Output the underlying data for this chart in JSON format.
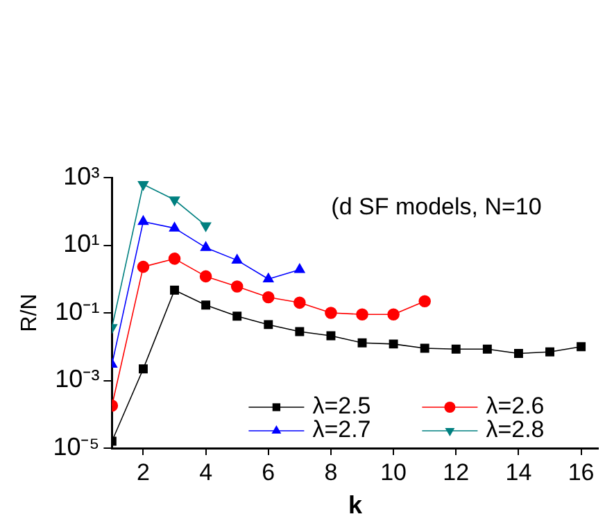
{
  "chart_data": {
    "type": "line",
    "xlabel": "k",
    "ylabel": "R/N",
    "annotations": [
      "(d SF models, N=10"
    ],
    "log": "y",
    "xlim": [
      1,
      16.55
    ],
    "xticks": [
      2,
      4,
      6,
      8,
      10,
      12,
      14,
      16
    ],
    "ylim": [
      1e-05,
      1000
    ],
    "yticks": [
      {
        "value": 1e-05,
        "label": "10⁻⁵"
      },
      {
        "value": 0.001,
        "label": "10⁻³"
      },
      {
        "value": 0.1,
        "label": "10⁻¹"
      },
      {
        "value": 10,
        "label": "10¹"
      },
      {
        "value": 1000,
        "label": "10³"
      }
    ],
    "grid": false,
    "legend": "bottom right",
    "line_style": "solid",
    "series": [
      {
        "name": "λ=2.5",
        "color": "#000000",
        "marker": "square",
        "x": [
          1,
          2,
          3,
          4,
          5,
          6,
          7,
          8,
          9,
          10,
          11,
          12,
          13,
          14,
          15,
          16
        ],
        "values": [
          1.6e-05,
          0.0022,
          0.47,
          0.17,
          0.08,
          0.045,
          0.028,
          0.021,
          0.013,
          0.012,
          0.009,
          0.0085,
          0.0085,
          0.0063,
          0.007,
          0.01
        ]
      },
      {
        "name": "λ=2.6",
        "color": "#ff0000",
        "marker": "circle",
        "x": [
          1,
          2,
          3,
          4,
          5,
          6,
          7,
          8,
          9,
          10,
          11
        ],
        "values": [
          0.00018,
          2.3,
          4,
          1.2,
          0.6,
          0.29,
          0.2,
          0.1,
          0.09,
          0.09,
          0.22
        ]
      },
      {
        "name": "λ=2.7",
        "color": "#0000ff",
        "marker": "triangle",
        "x": [
          1,
          2,
          3,
          4,
          5,
          6,
          7
        ],
        "values": [
          0.003,
          50,
          32,
          8.5,
          3.6,
          1,
          1.9
        ]
      },
      {
        "name": "λ=2.8",
        "color": "#008080",
        "marker": "triangle-down",
        "x": [
          1,
          2,
          3,
          4
        ],
        "values": [
          0.037,
          630,
          220,
          38
        ]
      }
    ]
  }
}
